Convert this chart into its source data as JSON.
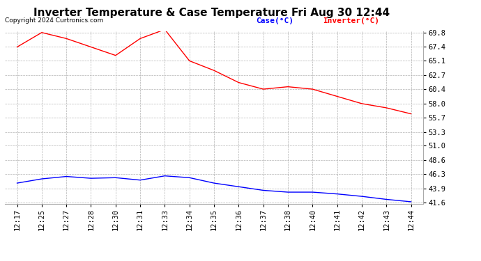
{
  "title": "Inverter Temperature & Case Temperature Fri Aug 30 12:44",
  "copyright": "Copyright 2024 Curtronics.com",
  "legend_case": "Case(°C)",
  "legend_inverter": "Inverter(°C)",
  "x_labels": [
    "12:17",
    "12:25",
    "12:27",
    "12:28",
    "12:30",
    "12:31",
    "12:33",
    "12:34",
    "12:35",
    "12:36",
    "12:37",
    "12:38",
    "12:40",
    "12:41",
    "12:42",
    "12:43",
    "12:44"
  ],
  "inverter_temps": [
    67.4,
    69.8,
    68.8,
    67.4,
    66.0,
    68.8,
    70.3,
    65.1,
    63.5,
    61.5,
    60.4,
    60.8,
    60.4,
    59.2,
    58.0,
    57.3,
    56.3
  ],
  "case_temps": [
    44.8,
    45.5,
    45.9,
    45.6,
    45.7,
    45.3,
    46.0,
    45.7,
    44.8,
    44.2,
    43.6,
    43.3,
    43.3,
    43.0,
    42.6,
    42.1,
    41.7
  ],
  "ylim_min": 41.6,
  "ylim_max": 69.8,
  "yticks": [
    41.6,
    43.9,
    46.3,
    48.6,
    51.0,
    53.3,
    55.7,
    58.0,
    60.4,
    62.7,
    65.1,
    67.4,
    69.8
  ],
  "inverter_color": "red",
  "case_color": "blue",
  "background_color": "#ffffff",
  "grid_color": "#aaaaaa",
  "title_fontsize": 11,
  "copyright_fontsize": 6.5,
  "legend_fontsize": 8,
  "tick_fontsize": 7.5
}
